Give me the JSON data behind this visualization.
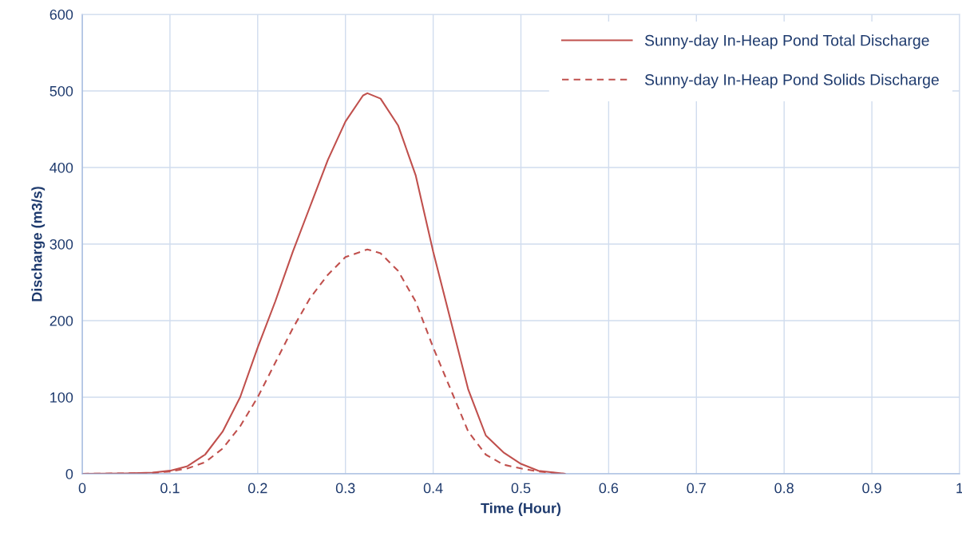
{
  "chart_data": {
    "type": "line",
    "xlabel": "Time (Hour)",
    "ylabel": "Discharge (m3/s)",
    "xlim": [
      0,
      1
    ],
    "xticks": [
      0,
      0.1,
      0.2,
      0.3,
      0.4,
      0.5,
      0.6,
      0.7,
      0.8,
      0.9,
      1
    ],
    "ylim": [
      0,
      600
    ],
    "yticks": [
      0,
      100,
      200,
      300,
      400,
      500,
      600
    ],
    "grid": true,
    "legend": "top right",
    "marker": "none",
    "series": [
      {
        "name": "Sunny-day In-Heap Pond Total Discharge",
        "color": "#c0504d",
        "line_style": "solid",
        "x": [
          0,
          0.05,
          0.08,
          0.1,
          0.12,
          0.14,
          0.16,
          0.18,
          0.2,
          0.22,
          0.24,
          0.26,
          0.28,
          0.3,
          0.32,
          0.325,
          0.34,
          0.36,
          0.38,
          0.4,
          0.42,
          0.44,
          0.46,
          0.48,
          0.5,
          0.52,
          0.55
        ],
        "values": [
          0,
          0.5,
          1.5,
          4,
          10,
          25,
          55,
          100,
          165,
          225,
          290,
          350,
          410,
          460,
          494,
          497,
          490,
          455,
          390,
          290,
          200,
          110,
          50,
          28,
          13,
          4,
          0
        ]
      },
      {
        "name": "Sunny-day In-Heap Pond Solids Discharge",
        "color": "#c0504d",
        "line_style": "dashed",
        "x": [
          0,
          0.08,
          0.1,
          0.12,
          0.14,
          0.16,
          0.18,
          0.2,
          0.22,
          0.24,
          0.26,
          0.28,
          0.3,
          0.325,
          0.34,
          0.36,
          0.38,
          0.4,
          0.42,
          0.44,
          0.46,
          0.48,
          0.5,
          0.52,
          0.55
        ],
        "values": [
          0,
          1,
          3,
          7,
          15,
          33,
          62,
          100,
          145,
          190,
          230,
          260,
          283,
          293,
          288,
          265,
          225,
          165,
          110,
          55,
          25,
          12,
          7,
          3,
          0
        ]
      }
    ]
  }
}
